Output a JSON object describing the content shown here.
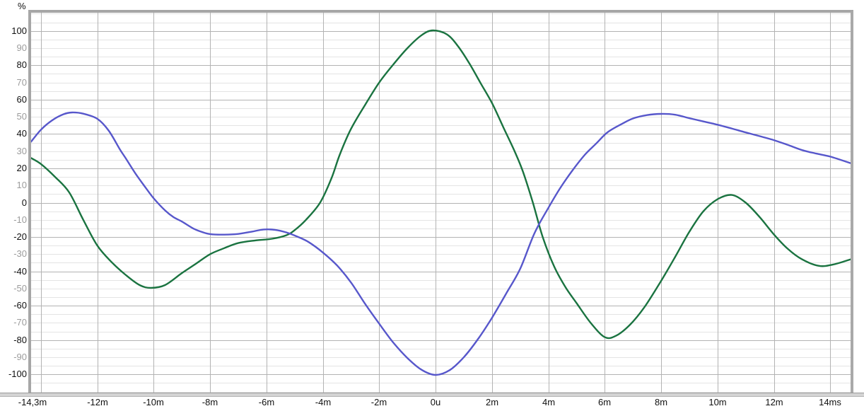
{
  "window": {
    "kind": "measurement-graph-panel"
  },
  "colors": {
    "background": "#ffffff",
    "green_series": "#1a7340",
    "blue_series": "#5757cb",
    "grid_minor": "#e4e4e4",
    "grid_major": "#b3b3b3",
    "plot_border": "#a6a6a6",
    "separator_fill": "#d4d4d4",
    "axis_strong_label": "#111111",
    "axis_weak_label": "#9c9c9c"
  },
  "chart_data": {
    "type": "line",
    "title": "",
    "xlabel": "",
    "ylabel": "%",
    "xlim": [
      -14.35,
      14.72
    ],
    "ylim": [
      -110.6,
      110.6
    ],
    "grid": {
      "x_major_step_ms": 2,
      "y_minor_step": 5,
      "y_major_step": 20,
      "legend": "none"
    },
    "x_ticks": [
      {
        "t": -14.3,
        "label": "-14,3m"
      },
      {
        "t": -12,
        "label": "-12m"
      },
      {
        "t": -10,
        "label": "-10m"
      },
      {
        "t": -8,
        "label": "-8m"
      },
      {
        "t": -6,
        "label": "-6m"
      },
      {
        "t": -4,
        "label": "-4m"
      },
      {
        "t": -2,
        "label": "-2m"
      },
      {
        "t": 0,
        "label": "0u"
      },
      {
        "t": 2,
        "label": "2m"
      },
      {
        "t": 4,
        "label": "4m"
      },
      {
        "t": 6,
        "label": "6m"
      },
      {
        "t": 8,
        "label": "8m"
      },
      {
        "t": 10,
        "label": "10m"
      },
      {
        "t": 12,
        "label": "12m"
      },
      {
        "t": 14,
        "label": "14ms"
      }
    ],
    "y_ticks": [
      {
        "v": 100,
        "label": "100",
        "strong": true
      },
      {
        "v": 90,
        "label": "90",
        "strong": false
      },
      {
        "v": 80,
        "label": "80",
        "strong": true
      },
      {
        "v": 70,
        "label": "70",
        "strong": false
      },
      {
        "v": 60,
        "label": "60",
        "strong": true
      },
      {
        "v": 50,
        "label": "50",
        "strong": false
      },
      {
        "v": 40,
        "label": "40",
        "strong": true
      },
      {
        "v": 30,
        "label": "30",
        "strong": false
      },
      {
        "v": 20,
        "label": "20",
        "strong": true
      },
      {
        "v": 10,
        "label": "10",
        "strong": false
      },
      {
        "v": 0,
        "label": "0",
        "strong": true
      },
      {
        "v": -10,
        "label": "-10",
        "strong": false
      },
      {
        "v": -20,
        "label": "-20",
        "strong": true
      },
      {
        "v": -30,
        "label": "-30",
        "strong": false
      },
      {
        "v": -40,
        "label": "-40",
        "strong": true
      },
      {
        "v": -50,
        "label": "-50",
        "strong": false
      },
      {
        "v": -60,
        "label": "-60",
        "strong": true
      },
      {
        "v": -70,
        "label": "-70",
        "strong": false
      },
      {
        "v": -80,
        "label": "-80",
        "strong": true
      },
      {
        "v": -90,
        "label": "-90",
        "strong": false
      },
      {
        "v": -100,
        "label": "-100",
        "strong": true
      }
    ],
    "series": [
      {
        "name": "green-curve",
        "color_key": "green_series",
        "points": [
          [
            -14.35,
            26
          ],
          [
            -14,
            22.5
          ],
          [
            -13.5,
            15
          ],
          [
            -13,
            6
          ],
          [
            -12.5,
            -10
          ],
          [
            -12,
            -25
          ],
          [
            -11.5,
            -34.5
          ],
          [
            -11,
            -42
          ],
          [
            -10.5,
            -48
          ],
          [
            -10.1,
            -49.6
          ],
          [
            -9.6,
            -48
          ],
          [
            -9,
            -41
          ],
          [
            -8.5,
            -35.5
          ],
          [
            -8,
            -30
          ],
          [
            -7.5,
            -26.5
          ],
          [
            -7,
            -23.5
          ],
          [
            -6.4,
            -22
          ],
          [
            -5.8,
            -21
          ],
          [
            -5.3,
            -19
          ],
          [
            -5,
            -16
          ],
          [
            -4.6,
            -10
          ],
          [
            -4.1,
            0
          ],
          [
            -3.7,
            14
          ],
          [
            -3.4,
            28
          ],
          [
            -3,
            43
          ],
          [
            -2.5,
            57
          ],
          [
            -2,
            70
          ],
          [
            -1.5,
            80.5
          ],
          [
            -1,
            90
          ],
          [
            -0.5,
            97.5
          ],
          [
            -0.1,
            100.3
          ],
          [
            0.4,
            98
          ],
          [
            0.8,
            91
          ],
          [
            1.2,
            81
          ],
          [
            1.6,
            69.5
          ],
          [
            2,
            58
          ],
          [
            2.4,
            44
          ],
          [
            2.8,
            30
          ],
          [
            3.1,
            18
          ],
          [
            3.45,
            0
          ],
          [
            3.8,
            -20
          ],
          [
            4.2,
            -37
          ],
          [
            4.6,
            -49
          ],
          [
            5,
            -58.5
          ],
          [
            5.5,
            -70
          ],
          [
            6,
            -78.3
          ],
          [
            6.4,
            -77.5
          ],
          [
            6.9,
            -71
          ],
          [
            7.4,
            -61
          ],
          [
            8,
            -45.5
          ],
          [
            8.5,
            -31.5
          ],
          [
            9,
            -17
          ],
          [
            9.5,
            -5
          ],
          [
            10,
            2
          ],
          [
            10.5,
            4.5
          ],
          [
            11,
            0
          ],
          [
            11.5,
            -8.5
          ],
          [
            12,
            -18.5
          ],
          [
            12.5,
            -27
          ],
          [
            13,
            -33
          ],
          [
            13.6,
            -36.8
          ],
          [
            14.1,
            -36
          ],
          [
            14.72,
            -33
          ]
        ]
      },
      {
        "name": "blue-curve",
        "color_key": "blue_series",
        "points": [
          [
            -14.35,
            35.5
          ],
          [
            -14,
            42.5
          ],
          [
            -13.6,
            48
          ],
          [
            -13.2,
            51.5
          ],
          [
            -12.9,
            52.5
          ],
          [
            -12.5,
            51.8
          ],
          [
            -12,
            48.8
          ],
          [
            -11.6,
            42
          ],
          [
            -11.2,
            31
          ],
          [
            -11,
            26
          ],
          [
            -10.65,
            17
          ],
          [
            -10.3,
            9
          ],
          [
            -10,
            2.5
          ],
          [
            -9.6,
            -4.5
          ],
          [
            -9.3,
            -8.4
          ],
          [
            -9,
            -11
          ],
          [
            -8.6,
            -15
          ],
          [
            -8.3,
            -17
          ],
          [
            -8,
            -18.3
          ],
          [
            -7.5,
            -18.6
          ],
          [
            -7,
            -18.2
          ],
          [
            -6.5,
            -16.8
          ],
          [
            -6.1,
            -15.6
          ],
          [
            -5.7,
            -15.8
          ],
          [
            -5.3,
            -17.3
          ],
          [
            -4.9,
            -19.8
          ],
          [
            -4.5,
            -23
          ],
          [
            -4,
            -29
          ],
          [
            -3.5,
            -36.5
          ],
          [
            -3,
            -46.5
          ],
          [
            -2.5,
            -59
          ],
          [
            -2,
            -70.5
          ],
          [
            -1.5,
            -81.5
          ],
          [
            -1,
            -90.5
          ],
          [
            -0.5,
            -97.3
          ],
          [
            0,
            -100.3
          ],
          [
            0.5,
            -97.5
          ],
          [
            1,
            -90
          ],
          [
            1.5,
            -79.5
          ],
          [
            2,
            -67
          ],
          [
            2.5,
            -53
          ],
          [
            3,
            -38.5
          ],
          [
            3.5,
            -18
          ],
          [
            4,
            -3
          ],
          [
            4.4,
            8
          ],
          [
            4.85,
            18.7
          ],
          [
            5.3,
            28
          ],
          [
            5.7,
            34.5
          ],
          [
            6.1,
            41
          ],
          [
            6.6,
            45.8
          ],
          [
            7,
            49
          ],
          [
            7.5,
            51
          ],
          [
            8,
            51.7
          ],
          [
            8.5,
            51.2
          ],
          [
            9,
            49.2
          ],
          [
            9.5,
            47.3
          ],
          [
            10,
            45.4
          ],
          [
            10.5,
            43.2
          ],
          [
            11,
            40.9
          ],
          [
            11.5,
            38.7
          ],
          [
            12,
            36.4
          ],
          [
            12.5,
            33.6
          ],
          [
            13,
            30.6
          ],
          [
            13.5,
            28.6
          ],
          [
            14,
            26.8
          ],
          [
            14.72,
            23
          ]
        ]
      }
    ]
  }
}
